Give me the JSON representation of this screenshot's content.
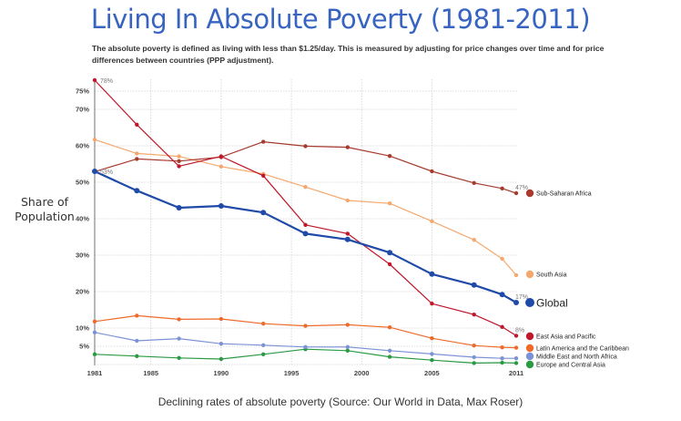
{
  "header": {
    "title": "Living In Absolute Poverty (1981-2011)",
    "subtitle": "The absolute poverty is defined as living with less than $1.25/day. This is measured by adjusting for price changes over time and for price differences between countries (PPP adjustment)."
  },
  "caption": "Declining rates of absolute poverty (Source: Our World in Data, Max Roser)",
  "chart_data": {
    "type": "line",
    "title": "Living In Absolute Poverty (1981-2011)",
    "xlabel": "",
    "ylabel": "Share of Population",
    "x": [
      1981,
      1984,
      1987,
      1990,
      1993,
      1996,
      1999,
      2002,
      2005,
      2008,
      2010,
      2011
    ],
    "xticks": [
      1981,
      1985,
      1990,
      1995,
      2000,
      2005,
      2011
    ],
    "xtick_labels": [
      "1981",
      "1985",
      "1990",
      "1995",
      "2000",
      "2005",
      "2011"
    ],
    "yticks": [
      5,
      10,
      20,
      30,
      40,
      50,
      60,
      70,
      75
    ],
    "ytick_labels": [
      "5%",
      "10%",
      "20%",
      "30%",
      "40%",
      "50%",
      "60%",
      "70%",
      "75%"
    ],
    "xlim": [
      1981,
      2011
    ],
    "ylim": [
      0,
      80
    ],
    "grid": true,
    "legend": "right",
    "series": [
      {
        "name": "Sub-Saharan Africa",
        "color": "#a63b2e",
        "values": [
          52.9,
          56.4,
          55.8,
          56.9,
          61.1,
          59.9,
          59.6,
          57.2,
          53.0,
          49.8,
          48.3,
          47.0
        ],
        "end_label": "47%"
      },
      {
        "name": "South Asia",
        "color": "#f5a86e",
        "values": [
          61.7,
          57.9,
          57.1,
          54.3,
          52.3,
          48.7,
          45.0,
          44.2,
          39.3,
          34.2,
          29.0,
          24.5
        ],
        "end_label": ""
      },
      {
        "name": "Global",
        "color": "#1f4aa8",
        "values": [
          53.0,
          47.7,
          43.0,
          43.5,
          41.7,
          35.9,
          34.3,
          30.7,
          24.8,
          21.8,
          19.2,
          17.0
        ],
        "start_label": "53%",
        "end_label": "17%",
        "emphasis": true
      },
      {
        "name": "East Asia and Pacific",
        "color": "#c0172b",
        "values": [
          78.0,
          65.8,
          54.4,
          57.1,
          51.8,
          38.3,
          35.9,
          27.5,
          16.7,
          13.7,
          10.3,
          7.9
        ],
        "start_label": "78%",
        "end_label": "8%"
      },
      {
        "name": "Latin America and the Caribbean",
        "color": "#ee6a2a",
        "values": [
          11.8,
          13.4,
          12.4,
          12.5,
          11.2,
          10.6,
          10.9,
          10.2,
          7.2,
          5.2,
          4.7,
          4.6
        ],
        "end_label": ""
      },
      {
        "name": "Middle East and North Africa",
        "color": "#7b92d6",
        "values": [
          8.8,
          6.5,
          7.1,
          5.7,
          5.3,
          4.8,
          4.8,
          3.8,
          2.9,
          2.0,
          1.7,
          1.7
        ],
        "end_label": ""
      },
      {
        "name": "Europe and Central Asia",
        "color": "#2a9a44",
        "values": [
          2.8,
          2.3,
          1.8,
          1.5,
          2.8,
          4.2,
          3.8,
          2.1,
          1.2,
          0.4,
          0.5,
          0.4
        ],
        "end_label": ""
      }
    ]
  }
}
